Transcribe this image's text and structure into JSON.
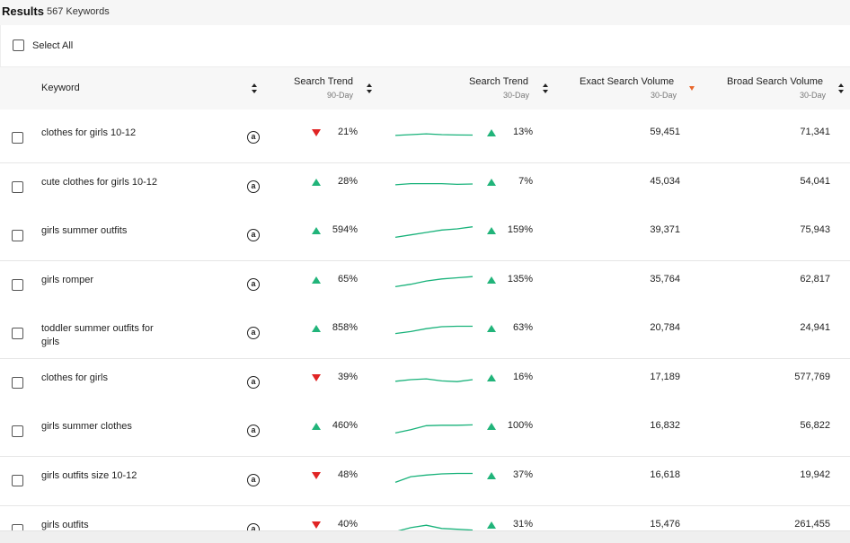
{
  "header": {
    "title": "Results",
    "count": "567 Keywords"
  },
  "select_all": {
    "label": "Select All"
  },
  "columns": {
    "keyword": {
      "label": "Keyword"
    },
    "trend90": {
      "label": "Search Trend",
      "sub": "90-Day"
    },
    "trend30": {
      "label": "Search Trend",
      "sub": "30-Day"
    },
    "exact": {
      "label": "Exact Search Volume",
      "sub": "30-Day"
    },
    "broad": {
      "label": "Broad Search Volume",
      "sub": "30-Day"
    }
  },
  "colors": {
    "up": "#21b47a",
    "down": "#e02424",
    "sparkline": "#18b27a",
    "sort_active": "#e8662a"
  },
  "rows": [
    {
      "keyword": "clothes for girls 10-12",
      "trend90_dir": "down",
      "trend90": "21%",
      "trend30_dir": "up",
      "trend30": "13%",
      "exact": "59,451",
      "broad": "71,341",
      "spark": [
        0.45,
        0.5,
        0.55,
        0.5,
        0.48,
        0.47
      ]
    },
    {
      "keyword": "cute clothes for girls 10-12",
      "trend90_dir": "up",
      "trend90": "28%",
      "trend30_dir": "up",
      "trend30": "7%",
      "exact": "45,034",
      "broad": "54,041",
      "spark": [
        0.45,
        0.52,
        0.52,
        0.52,
        0.48,
        0.5
      ]
    },
    {
      "keyword": "girls summer outfits",
      "trend90_dir": "up",
      "trend90": "594%",
      "trend30_dir": "up",
      "trend30": "159%",
      "exact": "39,371",
      "broad": "75,943",
      "spark": [
        0.2,
        0.35,
        0.5,
        0.65,
        0.72,
        0.85
      ]
    },
    {
      "keyword": "girls romper",
      "trend90_dir": "up",
      "trend90": "65%",
      "trend30_dir": "up",
      "trend30": "135%",
      "exact": "35,764",
      "broad": "62,817",
      "spark": [
        0.2,
        0.35,
        0.55,
        0.68,
        0.75,
        0.82
      ]
    },
    {
      "keyword": "toddler summer outfits for girls",
      "trend90_dir": "up",
      "trend90": "858%",
      "trend30_dir": "up",
      "trend30": "63%",
      "exact": "20,784",
      "broad": "24,941",
      "spark": [
        0.3,
        0.42,
        0.6,
        0.72,
        0.75,
        0.75
      ]
    },
    {
      "keyword": "clothes for girls",
      "trend90_dir": "down",
      "trend90": "39%",
      "trend30_dir": "up",
      "trend30": "16%",
      "exact": "17,189",
      "broad": "577,769",
      "spark": [
        0.4,
        0.5,
        0.55,
        0.42,
        0.38,
        0.5
      ]
    },
    {
      "keyword": "girls summer clothes",
      "trend90_dir": "up",
      "trend90": "460%",
      "trend30_dir": "up",
      "trend30": "100%",
      "exact": "16,832",
      "broad": "56,822",
      "spark": [
        0.2,
        0.4,
        0.65,
        0.68,
        0.68,
        0.7
      ]
    },
    {
      "keyword": "girls outfits size 10-12",
      "trend90_dir": "down",
      "trend90": "48%",
      "trend30_dir": "up",
      "trend30": "37%",
      "exact": "16,618",
      "broad": "19,942",
      "spark": [
        0.2,
        0.55,
        0.65,
        0.72,
        0.75,
        0.75
      ]
    },
    {
      "keyword": "girls outfits",
      "trend90_dir": "down",
      "trend90": "40%",
      "trend30_dir": "up",
      "trend30": "31%",
      "exact": "15,476",
      "broad": "261,455",
      "spark": [
        0.2,
        0.45,
        0.6,
        0.4,
        0.35,
        0.3
      ]
    }
  ]
}
